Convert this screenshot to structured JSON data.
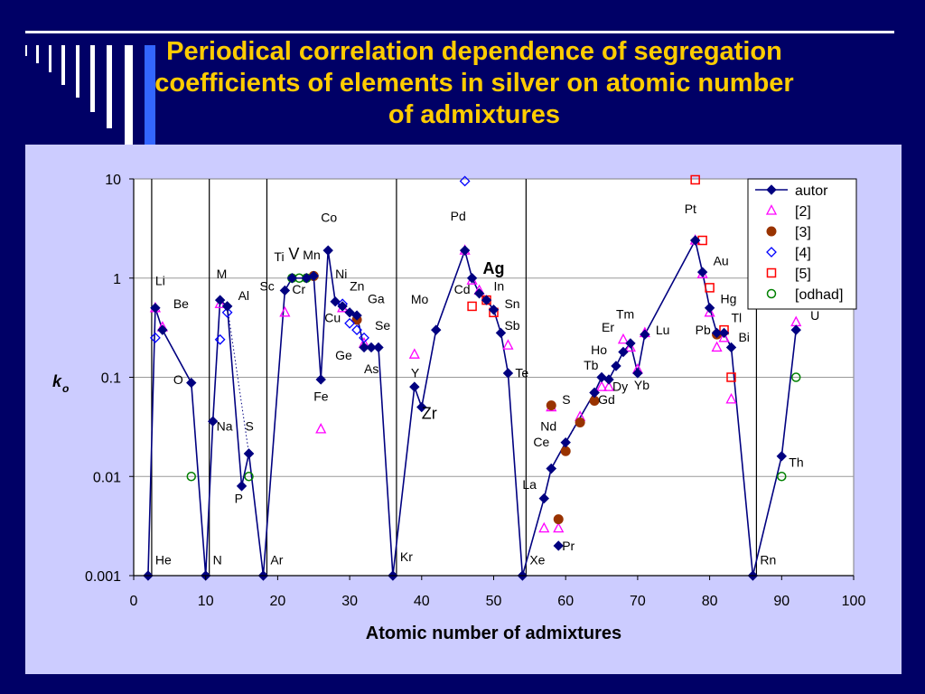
{
  "slide": {
    "title_line1": "Periodical correlation dependence of segregation",
    "title_line2": "coefficients of elements in silver on atomic number",
    "title_line3": "of admixtures"
  },
  "chart_data": {
    "type": "scatter",
    "xlabel": "Atomic number of admixtures",
    "ylabel": "k",
    "ylabel_subscript": "o",
    "xlim": [
      0,
      100
    ],
    "ylim": [
      0.001,
      10
    ],
    "yscale": "log",
    "xticks": [
      0,
      10,
      20,
      30,
      40,
      50,
      60,
      70,
      80,
      90,
      100
    ],
    "yticks": [
      0.001,
      0.01,
      0.1,
      1,
      10
    ],
    "ytick_labels": [
      "0.001",
      "0.01",
      "0.1",
      "1",
      "10"
    ],
    "grid": "horizontal",
    "legend_position": "top-right",
    "vertical_lines_x": [
      2.5,
      10.5,
      18.5,
      36.5,
      54.5,
      86.5
    ],
    "colors": {
      "autor": "#000080",
      "ref2": "#ff00ff",
      "ref3": "#993300",
      "ref4": "#0000ff",
      "ref5": "#ff0000",
      "odhad": "#008000",
      "panel": "#ccccff",
      "background": "#000066",
      "title": "#ffcc00"
    },
    "series": [
      {
        "name": "autor",
        "marker": "filled-diamond",
        "line": "solid",
        "points": [
          [
            2,
            0.001
          ],
          [
            3,
            0.5
          ],
          [
            4,
            0.3
          ],
          [
            8,
            0.088
          ],
          [
            10,
            0.001
          ],
          [
            11,
            0.036
          ],
          [
            12,
            0.6
          ],
          [
            13,
            0.52
          ],
          [
            15,
            0.008
          ],
          [
            16,
            0.017
          ],
          [
            18,
            0.001
          ],
          [
            21,
            0.75
          ],
          [
            22,
            1.0
          ],
          [
            24,
            1.0
          ],
          [
            25,
            1.05
          ],
          [
            26,
            0.095
          ],
          [
            27,
            1.9
          ],
          [
            28,
            0.58
          ],
          [
            29,
            0.52
          ],
          [
            30,
            0.45
          ],
          [
            31,
            0.42
          ],
          [
            32,
            0.2
          ],
          [
            33,
            0.2
          ],
          [
            34,
            0.2
          ],
          [
            36,
            0.001
          ],
          [
            39,
            0.08
          ],
          [
            40,
            0.05
          ],
          [
            42,
            0.3
          ],
          [
            46,
            1.9
          ],
          [
            47,
            1.0
          ],
          [
            48,
            0.7
          ],
          [
            49,
            0.6
          ],
          [
            50,
            0.48
          ],
          [
            51,
            0.28
          ],
          [
            52,
            0.11
          ],
          [
            54,
            0.001
          ],
          [
            57,
            0.006
          ],
          [
            58,
            0.012
          ],
          [
            60,
            0.022
          ],
          [
            64,
            0.07
          ],
          [
            65,
            0.1
          ],
          [
            66,
            0.095
          ],
          [
            67,
            0.13
          ],
          [
            68,
            0.18
          ],
          [
            69,
            0.22
          ],
          [
            70,
            0.11
          ],
          [
            71,
            0.27
          ],
          [
            78,
            2.4
          ],
          [
            79,
            1.15
          ],
          [
            80,
            0.5
          ],
          [
            81,
            0.28
          ],
          [
            82,
            0.28
          ],
          [
            83,
            0.2
          ],
          [
            86,
            0.001
          ],
          [
            90,
            0.016
          ],
          [
            92,
            0.3
          ]
        ]
      },
      {
        "name": "autor",
        "marker": "filled-diamond",
        "line": "dotted",
        "points": [
          [
            58,
            0.012
          ],
          [
            64,
            0.07
          ]
        ]
      },
      {
        "name": "autor",
        "marker": "filled-diamond",
        "line": "dotted",
        "points": [
          [
            13,
            0.52
          ],
          [
            16,
            0.017
          ]
        ]
      },
      {
        "name": "autor",
        "marker": "filled-diamond",
        "line": "none",
        "points": [
          [
            59,
            0.002
          ]
        ]
      },
      {
        "name": "[2]",
        "marker": "open-triangle",
        "points": [
          [
            3,
            0.5
          ],
          [
            4,
            0.32
          ],
          [
            12,
            0.55
          ],
          [
            21,
            0.45
          ],
          [
            26,
            0.03
          ],
          [
            29,
            0.5
          ],
          [
            32,
            0.22
          ],
          [
            39,
            0.17
          ],
          [
            46,
            1.9
          ],
          [
            47,
            0.95
          ],
          [
            48,
            0.75
          ],
          [
            52,
            0.21
          ],
          [
            57,
            0.003
          ],
          [
            58,
            0.05
          ],
          [
            59,
            0.003
          ],
          [
            62,
            0.04
          ],
          [
            65,
            0.08
          ],
          [
            66,
            0.08
          ],
          [
            68,
            0.24
          ],
          [
            69,
            0.2
          ],
          [
            70,
            0.12
          ],
          [
            71,
            0.28
          ],
          [
            78,
            2.4
          ],
          [
            79,
            1.1
          ],
          [
            80,
            0.45
          ],
          [
            81,
            0.2
          ],
          [
            82,
            0.25
          ],
          [
            83,
            0.06
          ],
          [
            92,
            0.36
          ]
        ]
      },
      {
        "name": "[3]",
        "marker": "filled-circle",
        "points": [
          [
            25,
            1.05
          ],
          [
            31,
            0.38
          ],
          [
            58,
            0.052
          ],
          [
            59,
            0.0037
          ],
          [
            60,
            0.018
          ],
          [
            62,
            0.035
          ],
          [
            64,
            0.058
          ],
          [
            81,
            0.27
          ]
        ]
      },
      {
        "name": "[4]",
        "marker": "open-diamond",
        "points": [
          [
            3,
            0.25
          ],
          [
            12,
            0.24
          ],
          [
            13,
            0.45
          ],
          [
            29,
            0.55
          ],
          [
            30,
            0.35
          ],
          [
            31,
            0.3
          ],
          [
            32,
            0.25
          ],
          [
            46,
            9.5
          ]
        ]
      },
      {
        "name": "[5]",
        "marker": "open-square",
        "points": [
          [
            47,
            0.52
          ],
          [
            49,
            0.6
          ],
          [
            50,
            0.45
          ],
          [
            78,
            9.8
          ],
          [
            79,
            2.4
          ],
          [
            80,
            0.8
          ],
          [
            82,
            0.3
          ],
          [
            83,
            0.1
          ]
        ]
      },
      {
        "name": "[odhad]",
        "marker": "open-circle",
        "points": [
          [
            8,
            0.01
          ],
          [
            16,
            0.01
          ],
          [
            22,
            1.0
          ],
          [
            23,
            1.0
          ],
          [
            24,
            1.0
          ],
          [
            90,
            0.01
          ],
          [
            92,
            0.1
          ]
        ]
      }
    ],
    "element_labels": [
      {
        "text": "He",
        "x": 3,
        "y": 0.0013
      },
      {
        "text": "N",
        "x": 11,
        "y": 0.0013
      },
      {
        "text": "Ar",
        "x": 19,
        "y": 0.0013
      },
      {
        "text": "Kr",
        "x": 37,
        "y": 0.0014
      },
      {
        "text": "Xe",
        "x": 55,
        "y": 0.0013
      },
      {
        "text": "Rn",
        "x": 87,
        "y": 0.0013
      },
      {
        "text": "Li",
        "x": 3,
        "y": 0.85
      },
      {
        "text": "Be",
        "x": 5.5,
        "y": 0.5
      },
      {
        "text": "O",
        "x": 5.5,
        "y": 0.085
      },
      {
        "text": "M",
        "x": 11.5,
        "y": 1.0
      },
      {
        "text": "Al",
        "x": 14.5,
        "y": 0.6
      },
      {
        "text": "Na",
        "x": 11.5,
        "y": 0.029
      },
      {
        "text": "S",
        "x": 15.5,
        "y": 0.029
      },
      {
        "text": "P",
        "x": 14,
        "y": 0.0054
      },
      {
        "text": "Sc",
        "x": 17.5,
        "y": 0.75
      },
      {
        "text": "Ti",
        "x": 19.5,
        "y": 1.48
      },
      {
        "text": "V",
        "x": 21.5,
        "y": 1.55
      },
      {
        "text": "Mn",
        "x": 23.5,
        "y": 1.55
      },
      {
        "text": "Cr",
        "x": 22,
        "y": 0.7
      },
      {
        "text": "Co",
        "x": 26,
        "y": 3.7
      },
      {
        "text": "Ni",
        "x": 28,
        "y": 1.0
      },
      {
        "text": "Zn",
        "x": 30,
        "y": 0.75
      },
      {
        "text": "Cu",
        "x": 26.5,
        "y": 0.36
      },
      {
        "text": "Ga",
        "x": 32.5,
        "y": 0.56
      },
      {
        "text": "Se",
        "x": 33.5,
        "y": 0.3
      },
      {
        "text": "Ge",
        "x": 28,
        "y": 0.15
      },
      {
        "text": "As",
        "x": 32,
        "y": 0.11
      },
      {
        "text": "Fe",
        "x": 25,
        "y": 0.058
      },
      {
        "text": "Y",
        "x": 38.5,
        "y": 0.1
      },
      {
        "text": "Zr",
        "x": 40,
        "y": 0.038
      },
      {
        "text": "Mo",
        "x": 38.5,
        "y": 0.55
      },
      {
        "text": "Pd",
        "x": 44,
        "y": 3.8
      },
      {
        "text": "Ag",
        "x": 48.5,
        "y": 1.1
      },
      {
        "text": "In",
        "x": 50,
        "y": 0.75
      },
      {
        "text": "Cd",
        "x": 44.5,
        "y": 0.7
      },
      {
        "text": "Sn",
        "x": 51.5,
        "y": 0.5
      },
      {
        "text": "Sb",
        "x": 51.5,
        "y": 0.3
      },
      {
        "text": "Te",
        "x": 53,
        "y": 0.1
      },
      {
        "text": "La",
        "x": 54,
        "y": 0.0075
      },
      {
        "text": "Ce",
        "x": 55.5,
        "y": 0.02
      },
      {
        "text": "Nd",
        "x": 56.5,
        "y": 0.029
      },
      {
        "text": "Pr",
        "x": 59.5,
        "y": 0.0018
      },
      {
        "text": "S",
        "x": 59.5,
        "y": 0.054
      },
      {
        "text": "Gd",
        "x": 64.5,
        "y": 0.054
      },
      {
        "text": "Dy",
        "x": 66.5,
        "y": 0.073
      },
      {
        "text": "Tb",
        "x": 62.5,
        "y": 0.12
      },
      {
        "text": "Ho",
        "x": 63.5,
        "y": 0.17
      },
      {
        "text": "Er",
        "x": 65,
        "y": 0.29
      },
      {
        "text": "Tm",
        "x": 67,
        "y": 0.39
      },
      {
        "text": "Lu",
        "x": 72.5,
        "y": 0.27
      },
      {
        "text": "Yb",
        "x": 69.5,
        "y": 0.075
      },
      {
        "text": "Pt",
        "x": 76.5,
        "y": 4.5
      },
      {
        "text": "Au",
        "x": 80.5,
        "y": 1.35
      },
      {
        "text": "Hg",
        "x": 81.5,
        "y": 0.56
      },
      {
        "text": "Tl",
        "x": 83,
        "y": 0.36
      },
      {
        "text": "Pb",
        "x": 78,
        "y": 0.27
      },
      {
        "text": "Bi",
        "x": 84,
        "y": 0.23
      },
      {
        "text": "Th",
        "x": 91,
        "y": 0.0125
      },
      {
        "text": "U",
        "x": 94,
        "y": 0.38
      }
    ]
  }
}
